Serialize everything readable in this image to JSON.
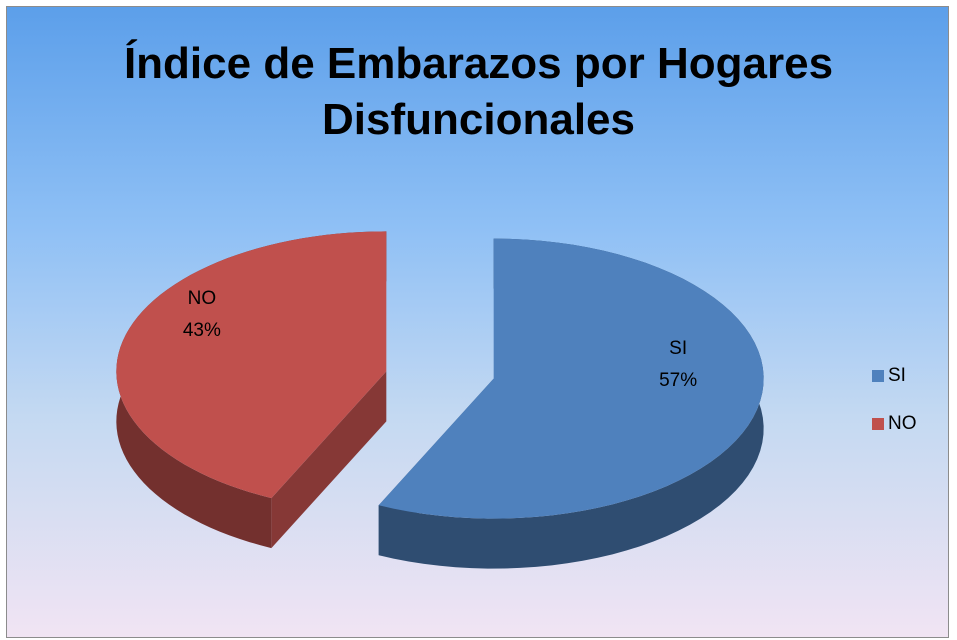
{
  "chart_data": {
    "type": "pie",
    "title": "Índice de Embarazos por Hogares Disfuncionales",
    "categories": [
      "SI",
      "NO"
    ],
    "values": [
      57,
      43
    ],
    "value_labels": [
      "57%",
      "43%"
    ],
    "colors": [
      "#4f81bd",
      "#c0504d"
    ],
    "legend": "right"
  }
}
